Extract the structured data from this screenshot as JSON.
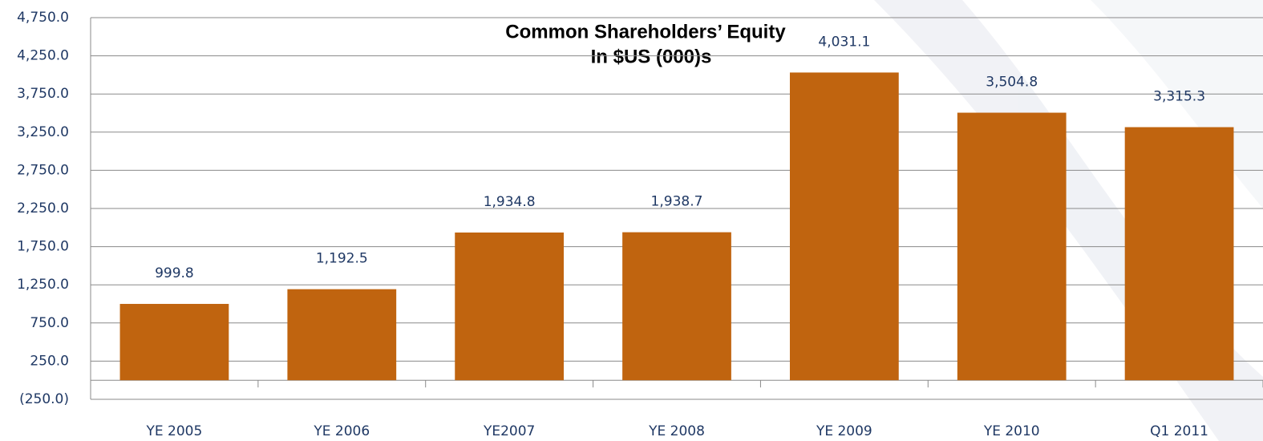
{
  "chart_data": {
    "type": "bar",
    "title": "Common Shareholders’ Equity",
    "subtitle": "In $US (000)s",
    "categories": [
      "YE 2005",
      "YE 2006",
      "YE2007",
      "YE 2008",
      "YE 2009",
      "YE 2010",
      "Q1 2011"
    ],
    "values": [
      999.8,
      1192.5,
      1934.8,
      1938.7,
      4031.1,
      3504.8,
      3315.3
    ],
    "value_labels": [
      "999.8",
      "1,192.5",
      "1,934.8",
      "1,938.7",
      "4,031.1",
      "3,504.8",
      "3,315.3"
    ],
    "color": "#c0640f",
    "ylim": [
      -250,
      4750
    ],
    "yticks": [
      {
        "value": -250,
        "label": "(250.0)"
      },
      {
        "value": 250,
        "label": "250.0"
      },
      {
        "value": 750,
        "label": "750.0"
      },
      {
        "value": 1250,
        "label": "1,250.0"
      },
      {
        "value": 1750,
        "label": "1,750.0"
      },
      {
        "value": 2250,
        "label": "2,250.0"
      },
      {
        "value": 2750,
        "label": "2,750.0"
      },
      {
        "value": 3250,
        "label": "3,250.0"
      },
      {
        "value": 3750,
        "label": "3,750.0"
      },
      {
        "value": 4250,
        "label": "4,250.0"
      },
      {
        "value": 4750,
        "label": "4,750.0"
      }
    ],
    "grid": true
  }
}
